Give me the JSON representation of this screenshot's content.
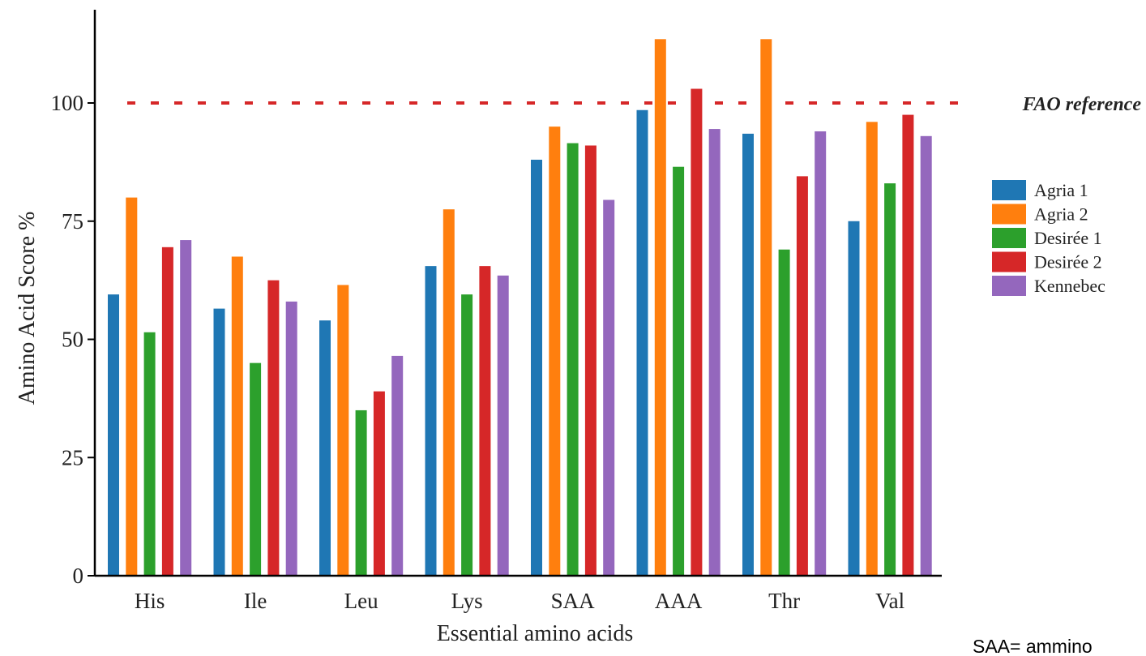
{
  "chart_data": {
    "type": "bar",
    "title": "",
    "xlabel": "Essential amino acids",
    "ylabel": "Amino Acid Score %",
    "ylim": [
      0,
      120
    ],
    "yticks": [
      0,
      25,
      50,
      75,
      100
    ],
    "categories": [
      "His",
      "Ile",
      "Leu",
      "Lys",
      "SAA",
      "AAA",
      "Thr",
      "Val"
    ],
    "series": [
      {
        "name": "Agria 1",
        "color": "#1f77b4",
        "values": [
          59.5,
          56.5,
          54,
          65.5,
          88,
          98.5,
          93.5,
          75
        ]
      },
      {
        "name": "Agria 2",
        "color": "#ff7f0e",
        "values": [
          80,
          67.5,
          61.5,
          77.5,
          95,
          113.5,
          113.5,
          96
        ]
      },
      {
        "name": "Desirée 1",
        "color": "#2ca02c",
        "values": [
          51.5,
          45,
          35,
          59.5,
          91.5,
          86.5,
          69,
          83
        ]
      },
      {
        "name": "Desirée 2",
        "color": "#d62728",
        "values": [
          69.5,
          62.5,
          39,
          65.5,
          91,
          103,
          84.5,
          97.5
        ]
      },
      {
        "name": "Kennebec",
        "color": "#9467bd",
        "values": [
          71,
          58,
          46.5,
          63.5,
          79.5,
          94.5,
          94,
          93
        ]
      }
    ],
    "reference": {
      "label": "FAO reference",
      "value": 100,
      "color": "#d62728",
      "style": "dashed"
    },
    "legend_position": "right",
    "grid": false,
    "footnote": "SAA= ammino"
  }
}
